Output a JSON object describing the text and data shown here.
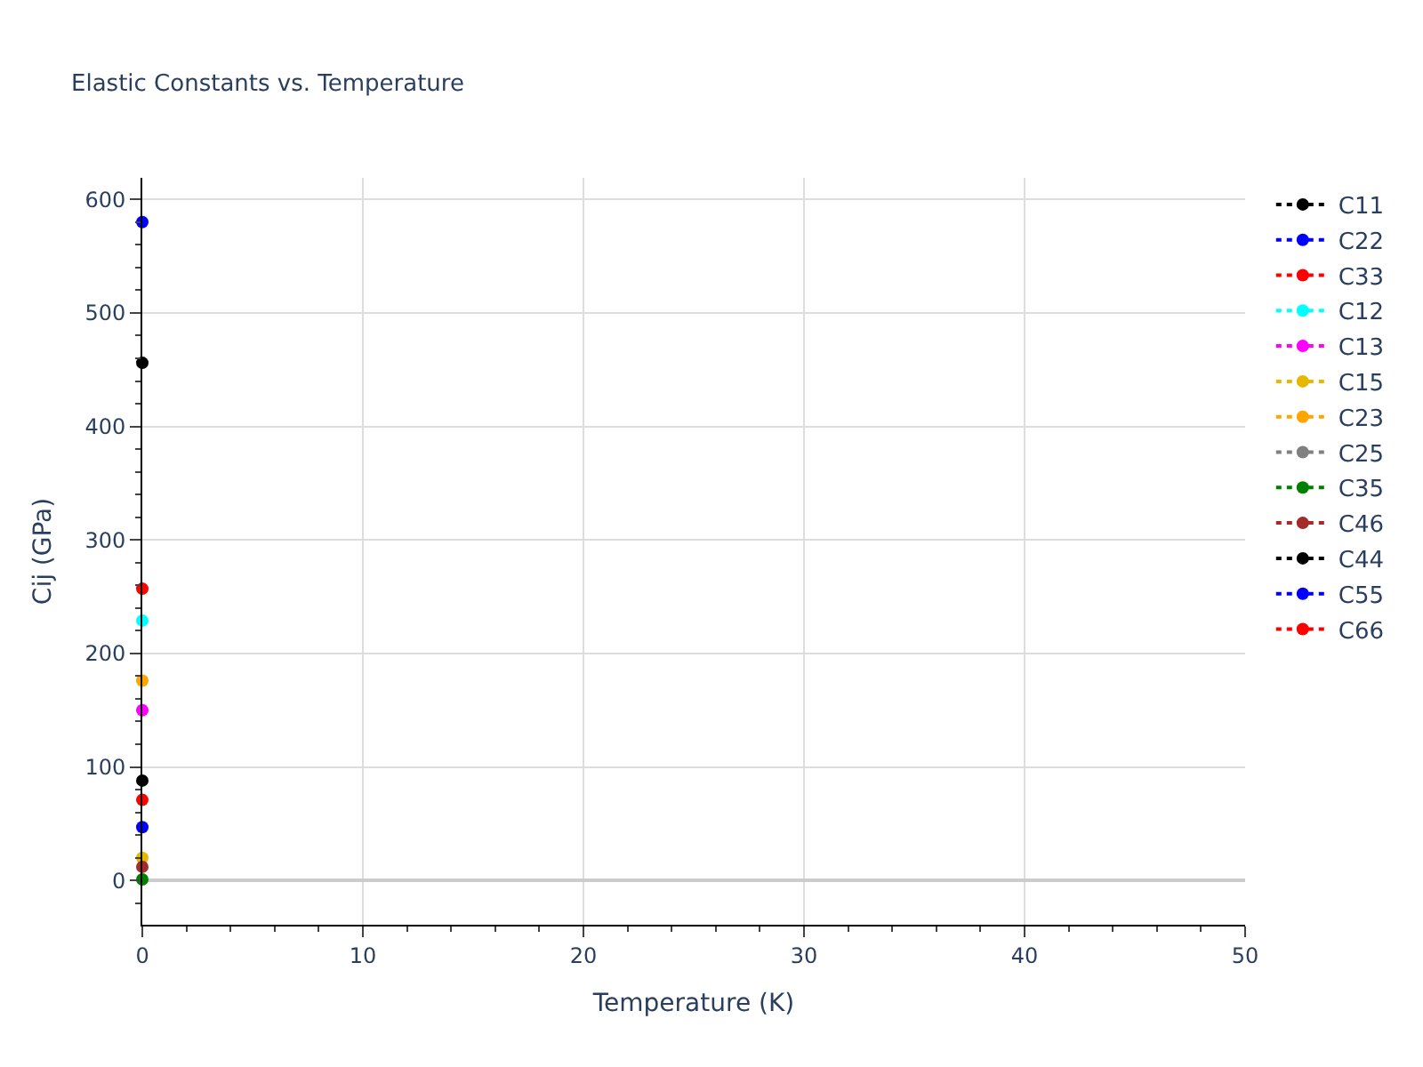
{
  "chart_data": {
    "type": "line",
    "title": "Elastic Constants vs. Temperature",
    "xlabel": "Temperature (K)",
    "ylabel": "Cij (GPa)",
    "x": [
      0
    ],
    "series": [
      {
        "name": "C11",
        "color": "#000000",
        "values": [
          456
        ]
      },
      {
        "name": "C22",
        "color": "#0000ff",
        "values": [
          580
        ]
      },
      {
        "name": "C33",
        "color": "#ff0000",
        "values": [
          257
        ]
      },
      {
        "name": "C12",
        "color": "#00ffff",
        "values": [
          229
        ]
      },
      {
        "name": "C13",
        "color": "#ff00ff",
        "values": [
          150
        ]
      },
      {
        "name": "C15",
        "color": "#e6b800",
        "values": [
          20
        ]
      },
      {
        "name": "C23",
        "color": "#ffa500",
        "values": [
          176
        ]
      },
      {
        "name": "C25",
        "color": "#808080",
        "values": [
          null
        ]
      },
      {
        "name": "C35",
        "color": "#008000",
        "values": [
          1
        ]
      },
      {
        "name": "C46",
        "color": "#a52a2a",
        "values": [
          12
        ]
      },
      {
        "name": "C44",
        "color": "#000000",
        "values": [
          88
        ]
      },
      {
        "name": "C55",
        "color": "#0000ff",
        "values": [
          47
        ]
      },
      {
        "name": "C66",
        "color": "#ff0000",
        "values": [
          71
        ]
      }
    ],
    "xlim": [
      0,
      50
    ],
    "xticks": [
      0,
      10,
      20,
      30,
      40,
      50
    ],
    "ylim": [
      -39,
      619
    ],
    "yticks": [
      0,
      100,
      200,
      300,
      400,
      500,
      600
    ],
    "grid": true,
    "legend": "top right",
    "marker": "circle",
    "line_style": "dashed"
  }
}
